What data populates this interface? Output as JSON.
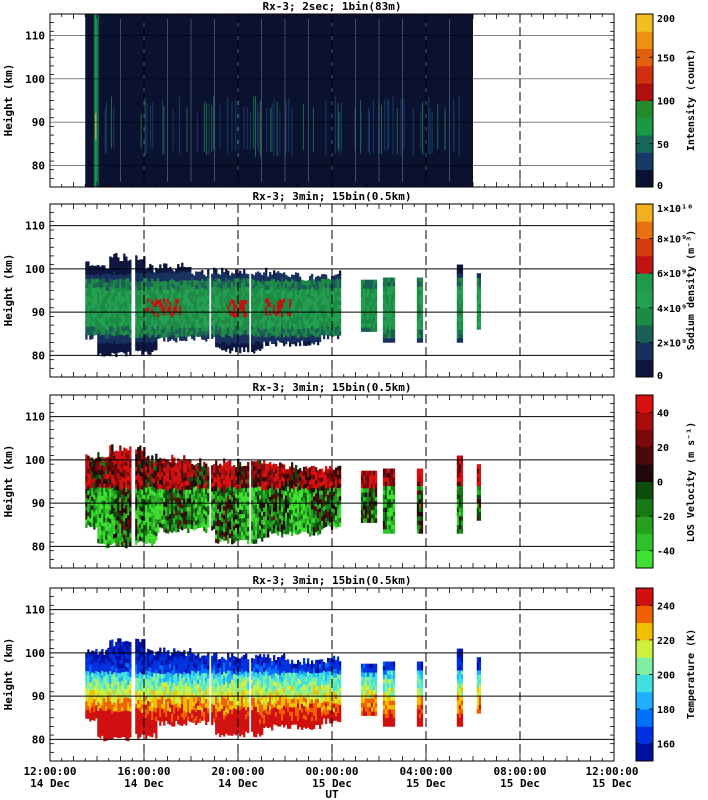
{
  "figure": {
    "xlabel": "UT",
    "x_ticks": [
      {
        "time": "12:00:00",
        "date": "14 Dec"
      },
      {
        "time": "16:00:00",
        "date": "14 Dec"
      },
      {
        "time": "20:00:00",
        "date": "14 Dec"
      },
      {
        "time": "00:00:00",
        "date": "15 Dec"
      },
      {
        "time": "04:00:00",
        "date": "15 Dec"
      },
      {
        "time": "08:00:00",
        "date": "15 Dec"
      },
      {
        "time": "12:00:00",
        "date": "15 Dec"
      }
    ]
  },
  "chart_data": [
    {
      "type": "heatmap",
      "title": "Rx-3;  2sec; 1bin(83m)",
      "ylabel": "Height (km)",
      "y_ticks": [
        80,
        90,
        100,
        110
      ],
      "ylim": [
        75,
        115
      ],
      "xlim_hours": [
        12,
        36
      ],
      "colorbar": {
        "label": "Intensity (count)",
        "ticks": [
          "0",
          "50",
          "100",
          "150",
          "200"
        ],
        "range": [
          0,
          200
        ],
        "colors": [
          "#0a1230",
          "#163a66",
          "#176858",
          "#1a9a40",
          "#258a2e",
          "#b01010",
          "#d03010",
          "#e06010",
          "#f09010",
          "#f0c020"
        ]
      },
      "data_extent_hours": [
        13.5,
        30.0
      ],
      "bright_column_hour": 13.95
    },
    {
      "type": "heatmap",
      "title": "Rx-3; 3min; 15bin(0.5km)",
      "ylabel": "Height (km)",
      "y_ticks": [
        80,
        90,
        100,
        110
      ],
      "ylim": [
        75,
        115
      ],
      "xlim_hours": [
        12,
        36
      ],
      "colorbar": {
        "label": "Sodium density (m⁻³)",
        "ticks": [
          "0",
          "2×10⁹",
          "4×10⁹",
          "6×10⁹",
          "8×10⁹",
          "1×10¹⁰"
        ],
        "range": [
          0,
          10000000000.0
        ],
        "colors": [
          "#0c1640",
          "#18305e",
          "#1a5e55",
          "#1d8a45",
          "#22a050",
          "#209a48",
          "#c01414",
          "#d83a10",
          "#e87010",
          "#f0b020"
        ]
      }
    },
    {
      "type": "heatmap",
      "title": "Rx-3; 3min; 15bin(0.5km)",
      "ylabel": "Height (km)",
      "y_ticks": [
        80,
        90,
        100,
        110
      ],
      "ylim": [
        75,
        115
      ],
      "xlim_hours": [
        12,
        36
      ],
      "colorbar": {
        "label": "LOS Velocity (m s⁻¹)",
        "ticks": [
          "-40",
          "-20",
          "0",
          "20",
          "40"
        ],
        "range": [
          -50,
          50
        ],
        "colors": [
          "#40e030",
          "#30c028",
          "#22a01e",
          "#187816",
          "#0e4c0c",
          "#220808",
          "#4a0a0a",
          "#7a0a0a",
          "#aa0c0c",
          "#d81010"
        ]
      }
    },
    {
      "type": "heatmap",
      "title": "Rx-3; 3min; 15bin(0.5km)",
      "ylabel": "Height (km)",
      "y_ticks": [
        80,
        90,
        100,
        110
      ],
      "ylim": [
        75,
        115
      ],
      "xlim_hours": [
        12,
        36
      ],
      "colorbar": {
        "label": "Temperature (K)",
        "ticks": [
          "160",
          "180",
          "200",
          "220",
          "240"
        ],
        "range": [
          150,
          250
        ],
        "colors": [
          "#0010a0",
          "#0030e0",
          "#0070ff",
          "#20b0ff",
          "#40e0e0",
          "#80f0a0",
          "#d0f040",
          "#f0c000",
          "#f06000",
          "#d01010"
        ]
      }
    }
  ]
}
